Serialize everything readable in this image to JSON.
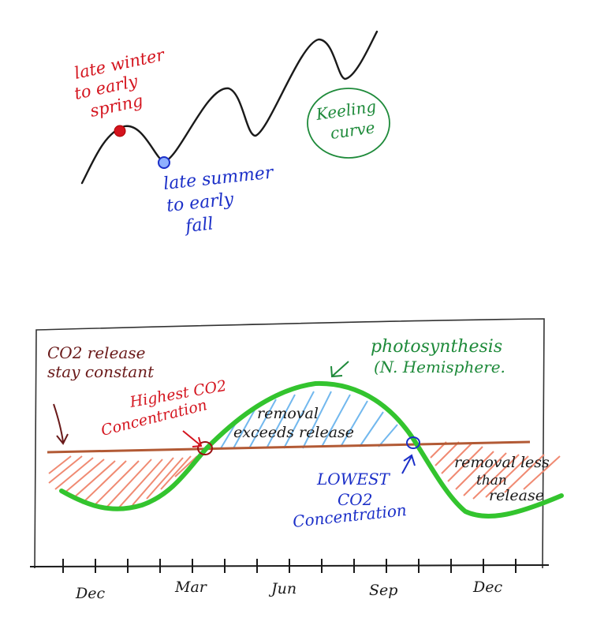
{
  "keeling": {
    "label_line1": "Keeling",
    "label_line2": "curve",
    "max_label_lines": [
      "late winter",
      "to early",
      "spring"
    ],
    "min_label_lines": [
      "late summer",
      "to early",
      "fall"
    ]
  },
  "seasonal": {
    "release_label_lines": [
      "CO2 release",
      "stay constant"
    ],
    "photo_label_lines": [
      "photosynthesis",
      "(N. Hemisphere."
    ],
    "highest_label_lines": [
      "Highest CO2",
      "Concentration"
    ],
    "removal_exceeds_lines": [
      "removal",
      "exceeds release"
    ],
    "lowest_label_lines": [
      "LOWEST",
      "CO2",
      "Concentration"
    ],
    "removal_less_lines": [
      "removal less",
      "than",
      "release"
    ],
    "months": [
      "Dec",
      "Mar",
      "Jun",
      "Sep",
      "Dec"
    ]
  },
  "colors": {
    "black": "#1a1a1a",
    "red": "#d4141e",
    "blue": "#1b2fc8",
    "green": "#1e8a3a",
    "bright_green": "#33c42e",
    "brown": "#b25a35",
    "salmon": "#f08a72",
    "light_blue": "#72b8ee",
    "maroon": "#6a1a1a"
  }
}
